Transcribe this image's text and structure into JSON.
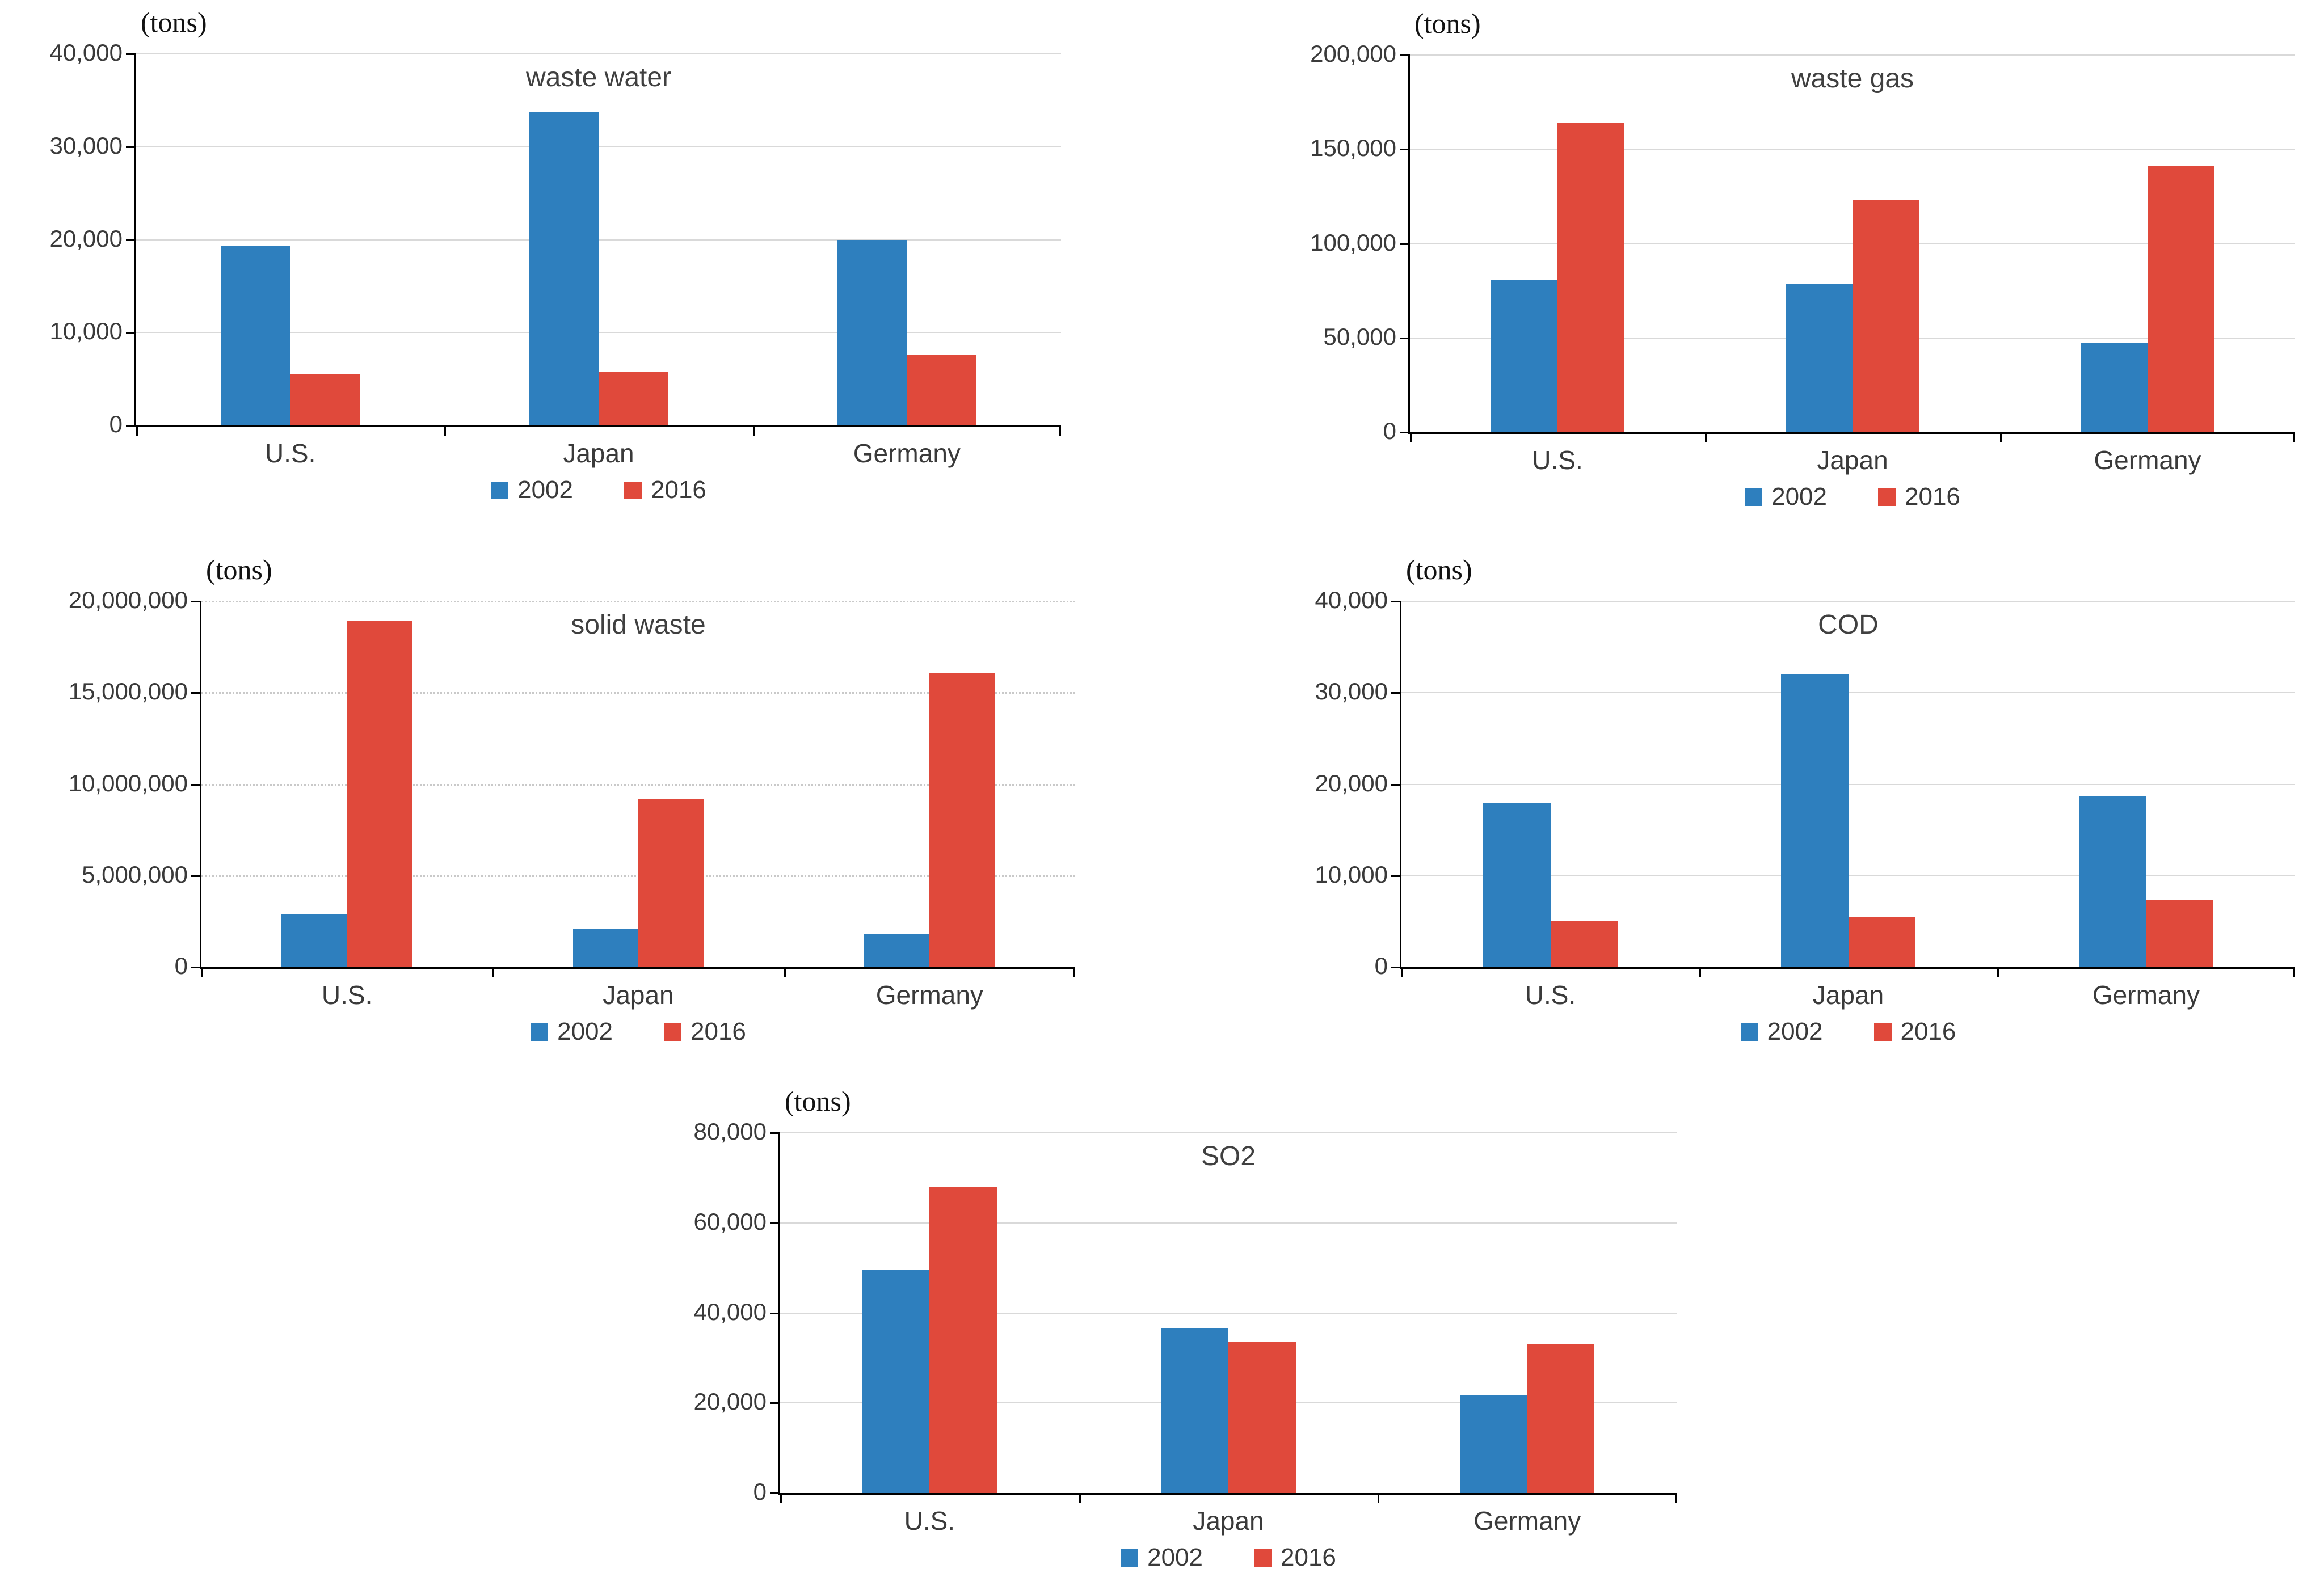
{
  "figure": {
    "description": "Five grouped bar charts comparing pollutant outputs of U.S., Japan and Germany in 2002 vs 2016",
    "series_names": [
      "2002",
      "2016"
    ],
    "series_colors": [
      "#2e7fbe",
      "#e0493b"
    ],
    "unit_label": "(tons)"
  },
  "chart_data": [
    {
      "type": "bar",
      "title": "waste water",
      "unit_label": "(tons)",
      "categories": [
        "U.S.",
        "Japan",
        "Germany"
      ],
      "series": [
        {
          "name": "2002",
          "values": [
            19300,
            33800,
            20000
          ]
        },
        {
          "name": "2016",
          "values": [
            5500,
            5800,
            7600
          ]
        }
      ],
      "ylim": [
        0,
        40000
      ],
      "ytick_step": 10000,
      "ytick_labels": [
        "0",
        "10,000",
        "20,000",
        "30,000",
        "40,000"
      ],
      "grid": true,
      "grid_style": "solid",
      "legend_position": "bottom"
    },
    {
      "type": "bar",
      "title": "waste gas",
      "unit_label": "(tons)",
      "categories": [
        "U.S.",
        "Japan",
        "Germany"
      ],
      "series": [
        {
          "name": "2002",
          "values": [
            81000,
            78500,
            47500
          ]
        },
        {
          "name": "2016",
          "values": [
            164000,
            123000,
            141000
          ]
        }
      ],
      "ylim": [
        0,
        200000
      ],
      "ytick_step": 50000,
      "ytick_labels": [
        "0",
        "50,000",
        "100,000",
        "150,000",
        "200,000"
      ],
      "grid": true,
      "grid_style": "solid",
      "legend_position": "bottom"
    },
    {
      "type": "bar",
      "title": "solid waste",
      "unit_label": "(tons)",
      "categories": [
        "U.S.",
        "Japan",
        "Germany"
      ],
      "series": [
        {
          "name": "2002",
          "values": [
            2900000,
            2100000,
            1800000
          ]
        },
        {
          "name": "2016",
          "values": [
            18900000,
            9200000,
            16100000
          ]
        }
      ],
      "ylim": [
        0,
        20000000
      ],
      "ytick_step": 5000000,
      "ytick_labels": [
        "0",
        "5,000,000",
        "10,000,000",
        "15,000,000",
        "20,000,000"
      ],
      "grid": true,
      "grid_style": "dotted",
      "legend_position": "bottom"
    },
    {
      "type": "bar",
      "title": "COD",
      "unit_label": "(tons)",
      "categories": [
        "U.S.",
        "Japan",
        "Germany"
      ],
      "series": [
        {
          "name": "2002",
          "values": [
            18000,
            32000,
            18700
          ]
        },
        {
          "name": "2016",
          "values": [
            5100,
            5500,
            7400
          ]
        }
      ],
      "ylim": [
        0,
        40000
      ],
      "ytick_step": 10000,
      "ytick_labels": [
        "0",
        "10,000",
        "20,000",
        "30,000",
        "40,000"
      ],
      "grid": true,
      "grid_style": "solid",
      "legend_position": "bottom"
    },
    {
      "type": "bar",
      "title": "SO2",
      "unit_label": "(tons)",
      "categories": [
        "U.S.",
        "Japan",
        "Germany"
      ],
      "series": [
        {
          "name": "2002",
          "values": [
            49500,
            36500,
            21800
          ]
        },
        {
          "name": "2016",
          "values": [
            68000,
            33500,
            33000
          ]
        }
      ],
      "ylim": [
        0,
        80000
      ],
      "ytick_step": 20000,
      "ytick_labels": [
        "0",
        "20,000",
        "40,000",
        "60,000",
        "80,000"
      ],
      "grid": true,
      "grid_style": "solid",
      "legend_position": "bottom"
    }
  ]
}
